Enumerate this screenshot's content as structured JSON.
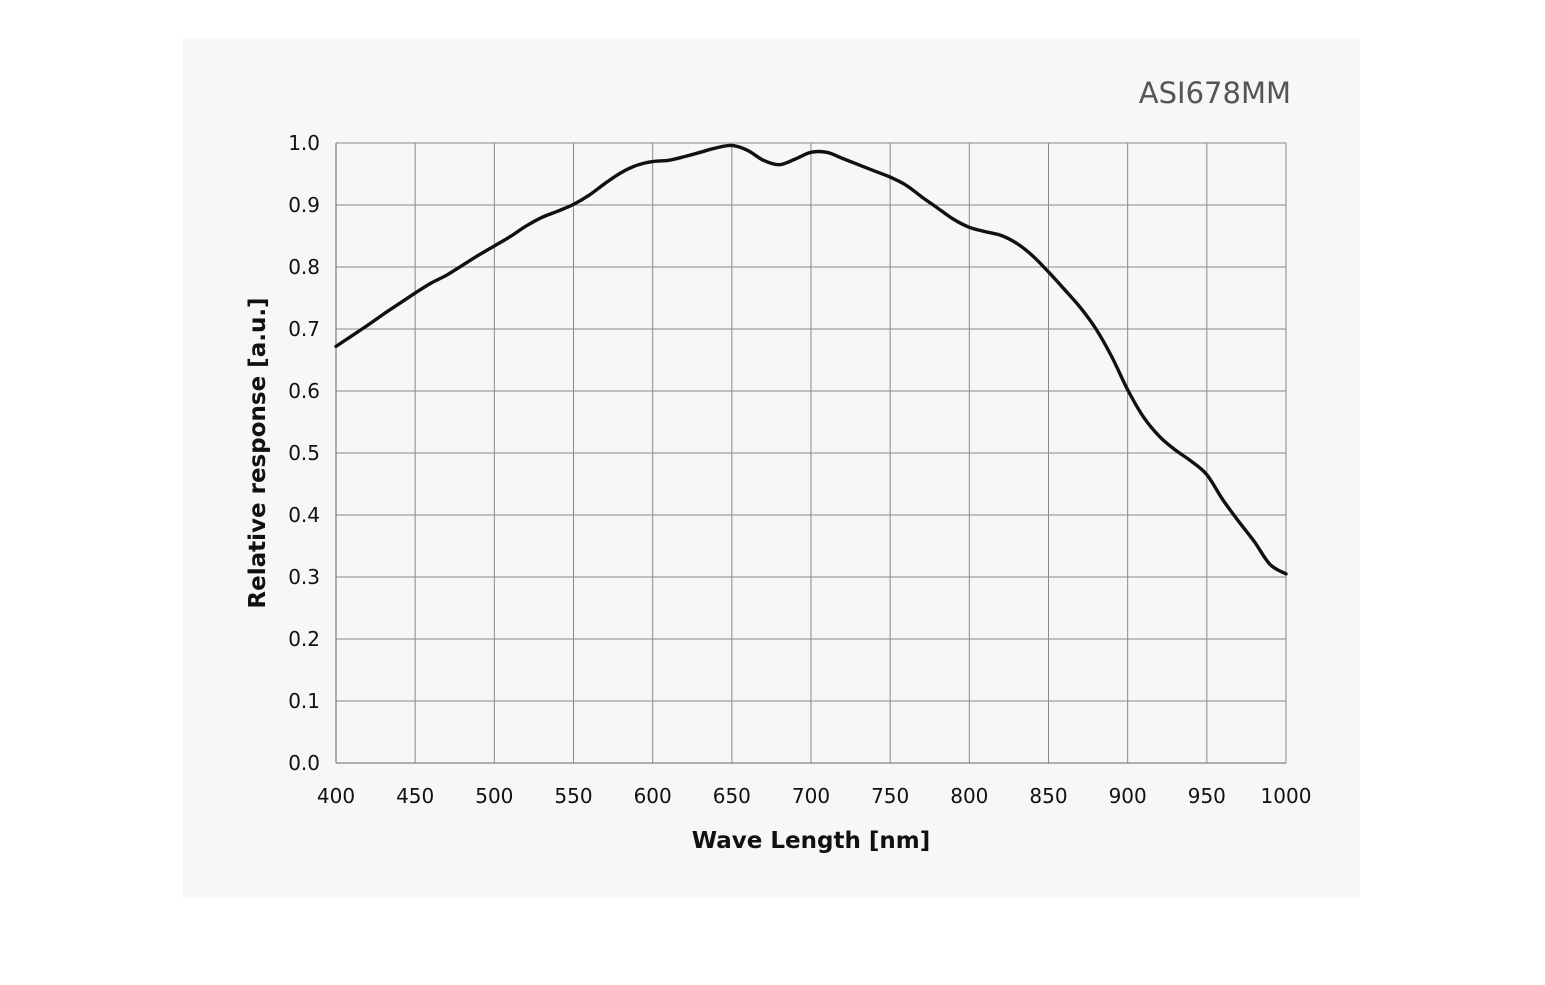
{
  "chart_data": {
    "type": "line",
    "title": "ASI678MM",
    "xlabel": "Wave Length [nm]",
    "ylabel": "Relative response [a.u.]",
    "xlim": [
      400,
      1000
    ],
    "ylim": [
      0,
      1.0
    ],
    "x_ticks": [
      "400",
      "450",
      "500",
      "550",
      "600",
      "650",
      "700",
      "750",
      "800",
      "850",
      "900",
      "950",
      "1000"
    ],
    "y_ticks": [
      "0.0",
      "0.1",
      "0.2",
      "0.3",
      "0.4",
      "0.5",
      "0.6",
      "0.7",
      "0.8",
      "0.9",
      "1.0"
    ],
    "grid": true,
    "series": [
      {
        "x": [
          400,
          410,
          420,
          430,
          440,
          450,
          460,
          470,
          480,
          490,
          500,
          510,
          520,
          530,
          540,
          550,
          560,
          570,
          580,
          590,
          600,
          610,
          620,
          630,
          640,
          650,
          660,
          670,
          680,
          690,
          700,
          710,
          720,
          730,
          740,
          750,
          760,
          770,
          780,
          790,
          800,
          810,
          820,
          830,
          840,
          850,
          860,
          870,
          880,
          890,
          900,
          910,
          920,
          930,
          940,
          950,
          960,
          970,
          980,
          990,
          1000
        ],
        "y": [
          0.672,
          0.689,
          0.706,
          0.724,
          0.741,
          0.758,
          0.774,
          0.787,
          0.803,
          0.819,
          0.834,
          0.849,
          0.866,
          0.88,
          0.89,
          0.901,
          0.916,
          0.935,
          0.952,
          0.964,
          0.97,
          0.972,
          0.978,
          0.985,
          0.992,
          0.996,
          0.988,
          0.972,
          0.965,
          0.974,
          0.985,
          0.985,
          0.975,
          0.965,
          0.955,
          0.945,
          0.932,
          0.913,
          0.895,
          0.877,
          0.864,
          0.857,
          0.851,
          0.838,
          0.818,
          0.792,
          0.764,
          0.735,
          0.7,
          0.655,
          0.602,
          0.558,
          0.527,
          0.505,
          0.487,
          0.465,
          0.425,
          0.39,
          0.357,
          0.32,
          0.305
        ]
      }
    ],
    "line_color": "#111111",
    "background_color": "#f7f7f7"
  }
}
